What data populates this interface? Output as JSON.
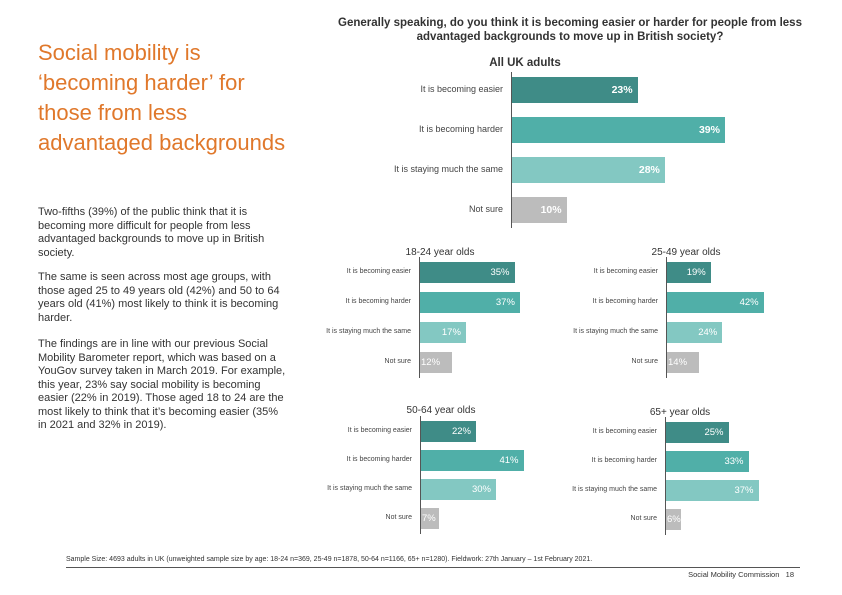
{
  "headline": "Social mobility is ‘becoming harder’ for those from less advantaged backgrounds",
  "paragraphs": [
    "Two-fifths (39%) of the public think that it is becoming more difficult for people from less advantaged backgrounds to move up in British society.",
    "The same is seen across most age groups, with those aged 25 to 49 years old (42%) and 50 to 64 years old (41%) most likely to think it is becoming harder.",
    "The findings are in line with our previous Social Mobility Barometer report, which was based on a YouGov survey taken in March 2019. For example, this year, 23% say social mobility is becoming easier (22% in 2019). Those aged 18 to 24 are the most likely to think that it’s becoming easier (35% in 2021 and 32% in 2019)."
  ],
  "question": "Generally speaking, do you think it is becoming easier or harder for people from less advantaged backgrounds to move up in British society?",
  "colors": {
    "headline": "#e0782b",
    "easier": "#3f8c87",
    "harder": "#50afa8",
    "same": "#83c8c2",
    "not_sure": "#bcbcbc"
  },
  "chart_data": [
    {
      "type": "bar",
      "orientation": "horizontal",
      "title": "All UK adults",
      "categories": [
        "It is becoming easier",
        "It is becoming harder",
        "It is staying much the same",
        "Not sure"
      ],
      "values": [
        23,
        39,
        28,
        10
      ],
      "unit": "%"
    },
    {
      "type": "bar",
      "orientation": "horizontal",
      "title": "18-24 year olds",
      "categories": [
        "It is becoming easier",
        "It is becoming harder",
        "It is staying much the same",
        "Not sure"
      ],
      "values": [
        35,
        37,
        17,
        12
      ],
      "unit": "%"
    },
    {
      "type": "bar",
      "orientation": "horizontal",
      "title": "25-49 year olds",
      "categories": [
        "It is becoming easier",
        "It is becoming harder",
        "It is staying much the same",
        "Not sure"
      ],
      "values": [
        19,
        42,
        24,
        14
      ],
      "unit": "%"
    },
    {
      "type": "bar",
      "orientation": "horizontal",
      "title": "50-64 year olds",
      "categories": [
        "It is becoming easier",
        "It is becoming harder",
        "It is staying much the same",
        "Not sure"
      ],
      "values": [
        22,
        41,
        30,
        7
      ],
      "unit": "%"
    },
    {
      "type": "bar",
      "orientation": "horizontal",
      "title": "65+ year olds",
      "categories": [
        "It is becoming easier",
        "It is becoming harder",
        "It is staying much the same",
        "Not sure"
      ],
      "values": [
        25,
        33,
        37,
        6
      ],
      "unit": "%"
    }
  ],
  "footnote": "Sample Size: 4693 adults in UK (unweighted sample size by age: 18-24 n=369, 25-49 n=1878, 50-64 n=1166, 65+ n=1280). Fieldwork: 27th January – 1st February 2021.",
  "footer": {
    "org": "Social Mobility Commission",
    "page": "18"
  }
}
